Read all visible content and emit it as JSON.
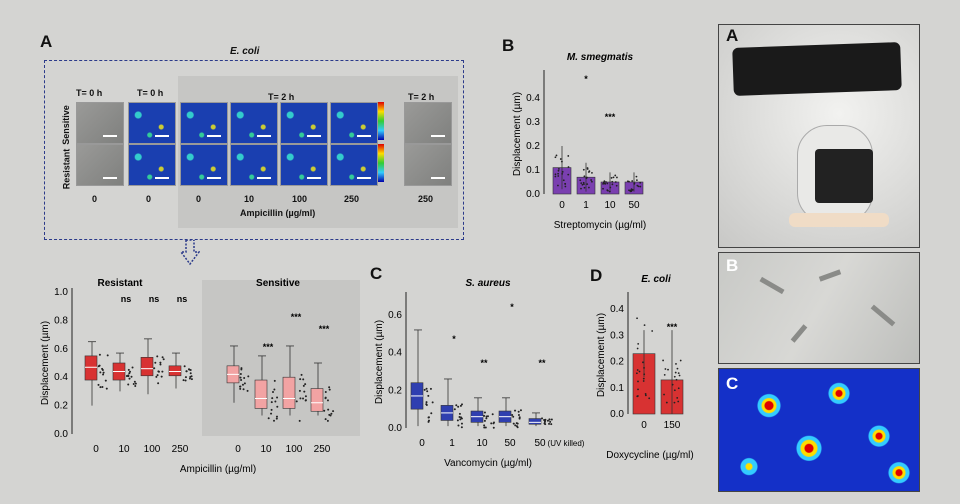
{
  "panelA": {
    "letter": "A",
    "organism": "E. coli",
    "time_labels": [
      "T= 0 h",
      "T= 0 h",
      "T= 2 h",
      "T= 2 h"
    ],
    "row_labels": [
      "Sensitive",
      "Resistant"
    ],
    "conc_labels": [
      "0",
      "0",
      "0",
      "10",
      "100",
      "250",
      "250"
    ],
    "axis_label": "Ampicillin (µg/ml)"
  },
  "chart_data": [
    {
      "id": "A-bottom",
      "type": "box",
      "groups": [
        "Resistant",
        "Sensitive"
      ],
      "categories": [
        "0",
        "10",
        "100",
        "250",
        "0",
        "10",
        "100",
        "250"
      ],
      "xlabel": "Ampicillin (µg/ml)",
      "ylabel": "Displacement (µm)",
      "ylim": [
        0,
        1.0
      ],
      "yticks": [
        "0.0",
        "0.2",
        "0.4",
        "0.6",
        "0.8",
        "1.0"
      ],
      "medians": [
        0.47,
        0.44,
        0.46,
        0.44,
        0.42,
        0.25,
        0.25,
        0.22
      ],
      "q1": [
        0.38,
        0.38,
        0.41,
        0.41,
        0.36,
        0.18,
        0.18,
        0.16
      ],
      "q3": [
        0.55,
        0.5,
        0.54,
        0.48,
        0.48,
        0.38,
        0.4,
        0.32
      ],
      "whisker_low": [
        0.2,
        0.3,
        0.28,
        0.32,
        0.22,
        0.13,
        0.13,
        0.13
      ],
      "whisker_high": [
        0.65,
        0.57,
        0.67,
        0.57,
        0.62,
        0.55,
        0.62,
        0.5
      ],
      "significance": [
        "",
        "ns",
        "ns",
        "ns",
        "",
        "***",
        "***",
        "***"
      ],
      "colors": [
        "#d83232",
        "#d83232",
        "#d83232",
        "#d83232",
        "#f2a3a3",
        "#f2a3a3",
        "#f2a3a3",
        "#f2a3a3"
      ]
    },
    {
      "id": "B",
      "type": "bar",
      "title": "M. smegmatis",
      "categories": [
        "0",
        "1",
        "10",
        "50"
      ],
      "values": [
        0.11,
        0.07,
        0.05,
        0.05
      ],
      "errors": [
        0.09,
        0.06,
        0.04,
        0.04
      ],
      "xlabel": "Streptomycin (µg/ml)",
      "ylabel": "Displacement (µm)",
      "ylim": [
        0,
        0.5
      ],
      "yticks": [
        "0.0",
        "0.1",
        "0.2",
        "0.3",
        "0.4"
      ],
      "significance": [
        "",
        "*",
        "***",
        ""
      ],
      "color": "#7a3fb0"
    },
    {
      "id": "C",
      "type": "box",
      "title": "S. aureus",
      "categories": [
        "0",
        "1",
        "10",
        "50",
        "50"
      ],
      "note": "(UV killed)",
      "xlabel": "Vancomycin (µg/ml)",
      "ylabel": "Displacement (µm)",
      "ylim": [
        0,
        0.7
      ],
      "yticks": [
        "0.0",
        "0.2",
        "0.4",
        "0.6"
      ],
      "medians": [
        0.17,
        0.08,
        0.06,
        0.06,
        0.03
      ],
      "q1": [
        0.1,
        0.04,
        0.03,
        0.03,
        0.02
      ],
      "q3": [
        0.24,
        0.12,
        0.09,
        0.09,
        0.05
      ],
      "whisker_low": [
        0.01,
        0.01,
        0.01,
        0.01,
        0.01
      ],
      "whisker_high": [
        0.52,
        0.26,
        0.16,
        0.16,
        0.08
      ],
      "significance": [
        "",
        "*",
        "**",
        "*",
        "**"
      ],
      "color": "#2f3fb0"
    },
    {
      "id": "D",
      "type": "bar",
      "title": "E. coli",
      "categories": [
        "0",
        "150"
      ],
      "values": [
        0.23,
        0.13
      ],
      "errors": [
        0.09,
        0.19
      ],
      "xlabel": "Doxycycline (µg/ml)",
      "ylabel": "Displacement (µm)",
      "ylim": [
        0,
        0.45
      ],
      "yticks": [
        "0.0",
        "0.1",
        "0.2",
        "0.3",
        "0.4"
      ],
      "significance": [
        "",
        "***"
      ],
      "color": "#d83232"
    }
  ],
  "panelB_letter": "B",
  "panelC_letter": "C",
  "panelD_letter": "D",
  "right": {
    "letters": [
      "A",
      "B",
      "C"
    ]
  }
}
